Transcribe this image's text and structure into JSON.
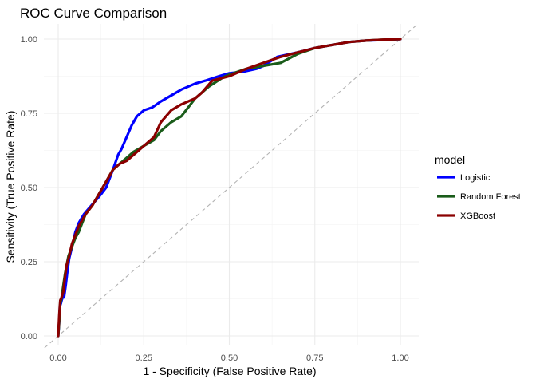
{
  "chart_data": {
    "type": "line",
    "title": "ROC Curve Comparison",
    "xlabel": "1 - Specificity (False Positive Rate)",
    "ylabel": "Sensitivity (True Positive Rate)",
    "xlim": [
      0,
      1
    ],
    "ylim": [
      0,
      1
    ],
    "x_ticks": [
      "0.00",
      "0.25",
      "0.50",
      "0.75",
      "1.00"
    ],
    "y_ticks": [
      "0.00",
      "0.25",
      "0.50",
      "0.75",
      "1.00"
    ],
    "grid": true,
    "reference_line": {
      "style": "dashed",
      "color": "#b3b3b3",
      "from": [
        0,
        0
      ],
      "to": [
        1,
        1
      ]
    },
    "legend": {
      "title": "model",
      "position": "right"
    },
    "series": [
      {
        "name": "Logistic",
        "color": "#0000ff",
        "x": [
          0.0,
          0.003,
          0.005,
          0.008,
          0.01,
          0.013,
          0.017,
          0.022,
          0.027,
          0.032,
          0.04,
          0.05,
          0.06,
          0.075,
          0.09,
          0.105,
          0.12,
          0.14,
          0.16,
          0.175,
          0.185,
          0.2,
          0.215,
          0.23,
          0.25,
          0.275,
          0.3,
          0.33,
          0.36,
          0.4,
          0.43,
          0.47,
          0.5,
          0.54,
          0.58,
          0.6,
          0.62,
          0.64,
          0.7,
          0.75,
          0.8,
          0.85,
          0.9,
          0.95,
          1.0
        ],
        "y": [
          0.0,
          0.05,
          0.1,
          0.11,
          0.12,
          0.13,
          0.13,
          0.17,
          0.22,
          0.26,
          0.3,
          0.35,
          0.38,
          0.41,
          0.43,
          0.45,
          0.47,
          0.5,
          0.56,
          0.61,
          0.63,
          0.67,
          0.71,
          0.74,
          0.76,
          0.77,
          0.79,
          0.81,
          0.83,
          0.85,
          0.86,
          0.875,
          0.885,
          0.89,
          0.9,
          0.91,
          0.925,
          0.94,
          0.955,
          0.97,
          0.98,
          0.99,
          0.995,
          0.997,
          1.0
        ]
      },
      {
        "name": "Random Forest",
        "color": "#1a5c1a",
        "x": [
          0.0,
          0.003,
          0.006,
          0.01,
          0.015,
          0.02,
          0.025,
          0.03,
          0.04,
          0.05,
          0.06,
          0.07,
          0.08,
          0.1,
          0.12,
          0.14,
          0.16,
          0.18,
          0.2,
          0.22,
          0.25,
          0.28,
          0.3,
          0.33,
          0.36,
          0.38,
          0.4,
          0.44,
          0.48,
          0.5,
          0.55,
          0.6,
          0.65,
          0.7,
          0.75,
          0.8,
          0.85,
          0.9,
          0.95,
          1.0
        ],
        "y": [
          0.0,
          0.05,
          0.11,
          0.13,
          0.17,
          0.21,
          0.24,
          0.27,
          0.3,
          0.33,
          0.35,
          0.38,
          0.41,
          0.44,
          0.48,
          0.52,
          0.56,
          0.58,
          0.6,
          0.62,
          0.64,
          0.66,
          0.69,
          0.72,
          0.74,
          0.77,
          0.8,
          0.84,
          0.87,
          0.88,
          0.9,
          0.91,
          0.92,
          0.95,
          0.97,
          0.98,
          0.99,
          0.995,
          0.998,
          1.0
        ]
      },
      {
        "name": "XGBoost",
        "color": "#8b0000",
        "x": [
          0.0,
          0.003,
          0.006,
          0.01,
          0.015,
          0.02,
          0.025,
          0.03,
          0.04,
          0.05,
          0.06,
          0.07,
          0.08,
          0.1,
          0.12,
          0.14,
          0.16,
          0.18,
          0.2,
          0.22,
          0.25,
          0.28,
          0.3,
          0.33,
          0.36,
          0.4,
          0.42,
          0.45,
          0.5,
          0.55,
          0.6,
          0.65,
          0.7,
          0.75,
          0.8,
          0.85,
          0.9,
          0.95,
          1.0
        ],
        "y": [
          0.0,
          0.07,
          0.12,
          0.13,
          0.15,
          0.2,
          0.24,
          0.26,
          0.31,
          0.34,
          0.37,
          0.39,
          0.41,
          0.44,
          0.48,
          0.52,
          0.56,
          0.58,
          0.59,
          0.61,
          0.64,
          0.67,
          0.72,
          0.76,
          0.78,
          0.8,
          0.82,
          0.86,
          0.875,
          0.9,
          0.92,
          0.94,
          0.955,
          0.97,
          0.98,
          0.99,
          0.995,
          0.998,
          1.0
        ]
      }
    ]
  }
}
